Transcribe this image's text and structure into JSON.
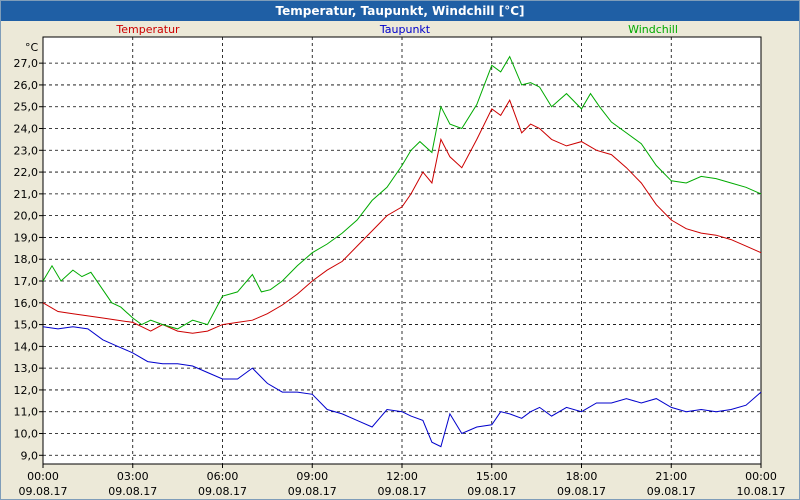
{
  "window": {
    "title": "Temperatur, Taupunkt, Windchill [°C]"
  },
  "chart_data": {
    "type": "line",
    "title": "Temperatur, Taupunkt, Windchill [°C]",
    "ylabel": "°C",
    "ylim": [
      8.6,
      28.2
    ],
    "yticks": [
      "9,0",
      "10,0",
      "11,0",
      "12,0",
      "13,0",
      "14,0",
      "15,0",
      "16,0",
      "17,0",
      "18,0",
      "19,0",
      "20,0",
      "21,0",
      "22,0",
      "23,0",
      "24,0",
      "25,0",
      "26,0",
      "27,0"
    ],
    "xlim": [
      0,
      24
    ],
    "xticks": [
      {
        "time": "00:00",
        "date": "09.08.17"
      },
      {
        "time": "03:00",
        "date": "09.08.17"
      },
      {
        "time": "06:00",
        "date": "09.08.17"
      },
      {
        "time": "09:00",
        "date": "09.08.17"
      },
      {
        "time": "12:00",
        "date": "09.08.17"
      },
      {
        "time": "15:00",
        "date": "09.08.17"
      },
      {
        "time": "18:00",
        "date": "09.08.17"
      },
      {
        "time": "21:00",
        "date": "09.08.17"
      },
      {
        "time": "00:00",
        "date": "10.08.17"
      }
    ],
    "grid": true,
    "legend_position": "top",
    "series": [
      {
        "name": "Temperatur",
        "color": "#cc0000",
        "x": [
          0,
          0.5,
          1,
          1.5,
          2,
          2.5,
          3,
          3.3,
          3.6,
          4,
          4.5,
          5,
          5.5,
          6,
          6.5,
          7,
          7.5,
          8,
          8.5,
          9,
          9.5,
          10,
          10.5,
          11,
          11.5,
          12,
          12.3,
          12.7,
          13,
          13.3,
          13.6,
          14,
          14.5,
          15,
          15.3,
          15.6,
          16,
          16.3,
          16.6,
          17,
          17.5,
          18,
          18.5,
          19,
          19.5,
          20,
          20.5,
          21,
          21.5,
          22,
          22.5,
          23,
          23.5,
          24
        ],
        "values": [
          16.0,
          15.6,
          15.5,
          15.4,
          15.3,
          15.2,
          15.1,
          14.9,
          14.7,
          15.0,
          14.7,
          14.6,
          14.7,
          15.0,
          15.1,
          15.2,
          15.5,
          15.9,
          16.4,
          17.0,
          17.5,
          17.9,
          18.6,
          19.3,
          20.0,
          20.4,
          21.0,
          22.0,
          21.5,
          23.5,
          22.7,
          22.2,
          23.5,
          24.9,
          24.6,
          25.3,
          23.8,
          24.2,
          24.0,
          23.5,
          23.2,
          23.4,
          23.0,
          22.8,
          22.2,
          21.5,
          20.5,
          19.8,
          19.4,
          19.2,
          19.1,
          18.9,
          18.6,
          18.3
        ]
      },
      {
        "name": "Taupunkt",
        "color": "#0000cc",
        "x": [
          0,
          0.5,
          1,
          1.5,
          2,
          2.5,
          3,
          3.5,
          4,
          4.5,
          5,
          5.5,
          6,
          6.5,
          7,
          7.5,
          8,
          8.5,
          9,
          9.5,
          10,
          10.5,
          11,
          11.5,
          12,
          12.3,
          12.7,
          13,
          13.3,
          13.6,
          14,
          14.5,
          15,
          15.3,
          15.6,
          16,
          16.3,
          16.6,
          17,
          17.5,
          18,
          18.5,
          19,
          19.5,
          20,
          20.5,
          21,
          21.5,
          22,
          22.5,
          23,
          23.5,
          24
        ],
        "values": [
          14.9,
          14.8,
          14.9,
          14.8,
          14.3,
          14.0,
          13.7,
          13.3,
          13.2,
          13.2,
          13.1,
          12.8,
          12.5,
          12.5,
          13.0,
          12.3,
          11.9,
          11.9,
          11.8,
          11.1,
          10.9,
          10.6,
          10.3,
          11.1,
          11.0,
          10.8,
          10.6,
          9.6,
          9.4,
          10.9,
          10.0,
          10.3,
          10.4,
          11.0,
          10.9,
          10.7,
          11.0,
          11.2,
          10.8,
          11.2,
          11.0,
          11.4,
          11.4,
          11.6,
          11.4,
          11.6,
          11.2,
          11.0,
          11.1,
          11.0,
          11.1,
          11.3,
          11.9
        ]
      },
      {
        "name": "Windchill",
        "color": "#00aa00",
        "x": [
          0,
          0.3,
          0.6,
          1,
          1.3,
          1.6,
          2,
          2.3,
          2.6,
          3,
          3.3,
          3.6,
          4,
          4.5,
          5,
          5.5,
          6,
          6.5,
          7,
          7.3,
          7.6,
          8,
          8.5,
          9,
          9.5,
          10,
          10.5,
          11,
          11.5,
          12,
          12.3,
          12.6,
          13,
          13.3,
          13.6,
          14,
          14.5,
          15,
          15.3,
          15.6,
          16,
          16.3,
          16.6,
          17,
          17.5,
          18,
          18.3,
          18.6,
          19,
          19.5,
          20,
          20.5,
          21,
          21.5,
          22,
          22.5,
          23,
          23.5,
          24
        ],
        "values": [
          17.0,
          17.7,
          17.0,
          17.5,
          17.2,
          17.4,
          16.6,
          16.0,
          15.8,
          15.3,
          15.0,
          15.2,
          15.0,
          14.8,
          15.2,
          15.0,
          16.3,
          16.5,
          17.3,
          16.5,
          16.6,
          17.0,
          17.7,
          18.3,
          18.7,
          19.2,
          19.8,
          20.7,
          21.3,
          22.3,
          23.0,
          23.4,
          22.9,
          25.0,
          24.2,
          24.0,
          25.1,
          26.9,
          26.6,
          27.3,
          26.0,
          26.1,
          25.9,
          25.0,
          25.6,
          24.9,
          25.6,
          25.0,
          24.3,
          23.8,
          23.3,
          22.3,
          21.6,
          21.5,
          21.8,
          21.7,
          21.5,
          21.3,
          21.0
        ]
      }
    ]
  }
}
